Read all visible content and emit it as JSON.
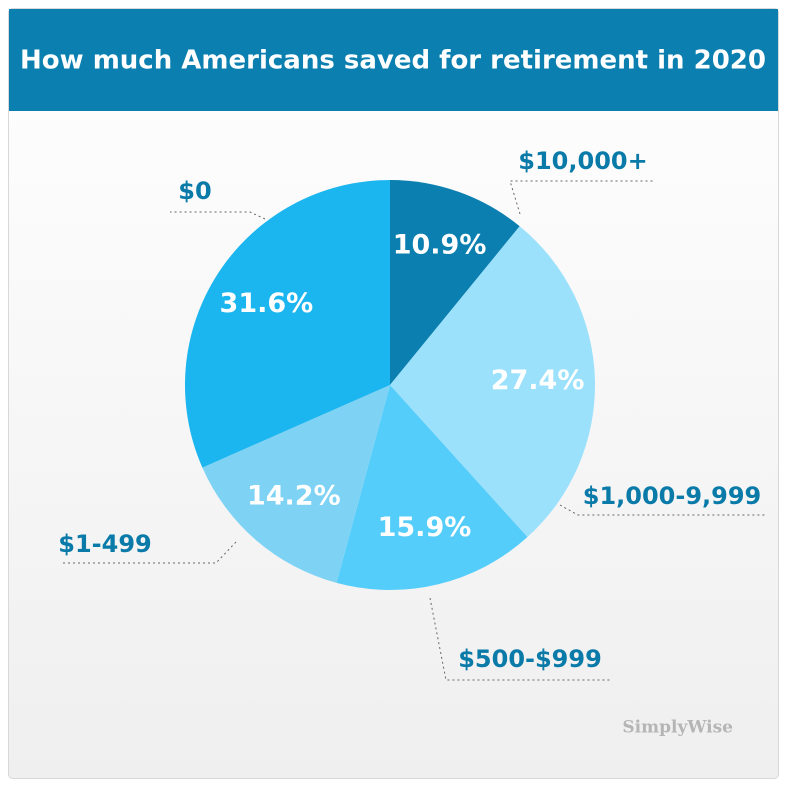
{
  "chart_data": {
    "type": "pie",
    "title": "How much Americans saved for retirement in 2020",
    "categories": [
      "$10,000+",
      "$1,000-9,999",
      "$500-$999",
      "$1-499",
      "$0"
    ],
    "values": [
      10.9,
      27.4,
      15.9,
      14.2,
      31.6
    ],
    "value_labels": [
      "10.9%",
      "27.4%",
      "15.9%",
      "14.2%",
      "31.6%"
    ],
    "colors": [
      "#0a7fb0",
      "#9ce1fc",
      "#55cdfa",
      "#7ed3f5",
      "#1bb5ef"
    ],
    "watermark": "SimplyWise"
  }
}
